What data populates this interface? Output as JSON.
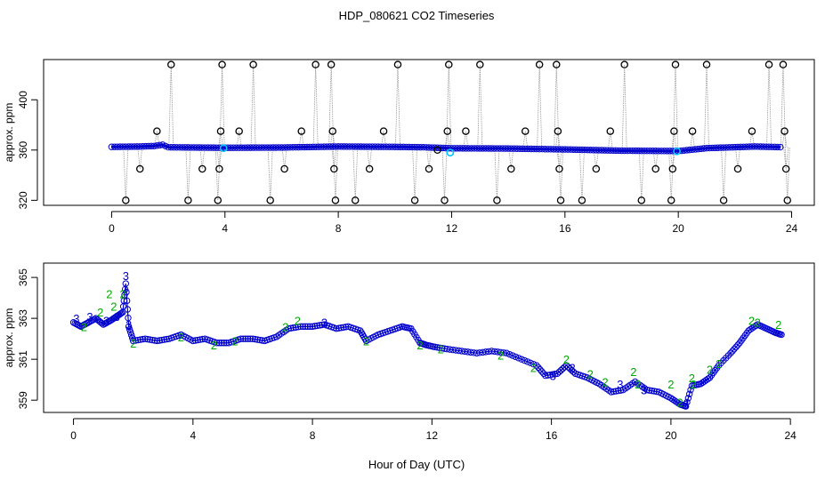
{
  "title": "HDP_080621  CO2 Timeseries",
  "x_axis_label": "Hour of Day (UTC)",
  "chart_data": [
    {
      "type": "scatter",
      "title": "",
      "xlabel": "",
      "ylabel": "approx. ppm",
      "xlim": [
        -2.4,
        24.8
      ],
      "ylim": [
        316,
        432
      ],
      "x_ticks": [
        0,
        4,
        8,
        12,
        16,
        20,
        24
      ],
      "y_ticks": [
        320,
        360,
        400
      ],
      "grid": false,
      "colors": {
        "outlier": "#000000",
        "series": "#0000cc",
        "highlight": "#00c8ff",
        "connector": "#9a9a9a"
      },
      "baseline": [
        [
          0,
          362.5
        ],
        [
          1,
          362.8
        ],
        [
          1.5,
          363.2
        ],
        [
          1.8,
          364.2
        ],
        [
          2.0,
          362.2
        ],
        [
          4,
          361.8
        ],
        [
          6,
          362
        ],
        [
          8,
          362.8
        ],
        [
          10,
          362.5
        ],
        [
          11,
          362.2
        ],
        [
          12,
          361.4
        ],
        [
          14,
          361.2
        ],
        [
          16,
          360.5
        ],
        [
          18,
          359.5
        ],
        [
          20,
          359.2
        ],
        [
          21,
          361.5
        ],
        [
          22.7,
          362.8
        ],
        [
          23.6,
          362.3
        ]
      ],
      "outliers": [
        [
          0.5,
          320
        ],
        [
          1.0,
          345
        ],
        [
          1.6,
          375
        ],
        [
          2.1,
          428
        ],
        [
          2.7,
          320
        ],
        [
          3.2,
          345
        ],
        [
          3.75,
          320
        ],
        [
          3.8,
          345
        ],
        [
          3.85,
          375
        ],
        [
          3.9,
          428
        ],
        [
          4.5,
          375
        ],
        [
          5.0,
          428
        ],
        [
          5.6,
          320
        ],
        [
          6.1,
          345
        ],
        [
          6.7,
          375
        ],
        [
          7.2,
          428
        ],
        [
          7.75,
          428
        ],
        [
          7.8,
          375
        ],
        [
          7.85,
          345
        ],
        [
          7.9,
          320
        ],
        [
          8.6,
          320
        ],
        [
          9.1,
          345
        ],
        [
          9.6,
          375
        ],
        [
          10.1,
          428
        ],
        [
          10.7,
          320
        ],
        [
          11.2,
          345
        ],
        [
          11.5,
          360
        ],
        [
          11.75,
          320
        ],
        [
          11.85,
          375
        ],
        [
          11.9,
          428
        ],
        [
          12.5,
          375
        ],
        [
          13.0,
          428
        ],
        [
          13.6,
          320
        ],
        [
          14.1,
          345
        ],
        [
          14.6,
          375
        ],
        [
          15.1,
          428
        ],
        [
          15.7,
          428
        ],
        [
          15.75,
          375
        ],
        [
          15.8,
          345
        ],
        [
          15.85,
          320
        ],
        [
          16.6,
          320
        ],
        [
          17.1,
          345
        ],
        [
          17.6,
          375
        ],
        [
          18.1,
          428
        ],
        [
          18.7,
          320
        ],
        [
          19.2,
          345
        ],
        [
          19.75,
          320
        ],
        [
          19.8,
          345
        ],
        [
          19.85,
          375
        ],
        [
          19.9,
          428
        ],
        [
          20.5,
          375
        ],
        [
          21.0,
          428
        ],
        [
          21.6,
          320
        ],
        [
          22.1,
          345
        ],
        [
          22.6,
          375
        ],
        [
          23.2,
          428
        ],
        [
          23.7,
          428
        ],
        [
          23.75,
          375
        ],
        [
          23.8,
          345
        ],
        [
          23.85,
          320
        ]
      ],
      "highlights": [
        [
          3.95,
          361.5
        ],
        [
          11.95,
          358
        ],
        [
          19.95,
          359
        ]
      ]
    },
    {
      "type": "scatter",
      "title": "",
      "xlabel": "Hour of Day (UTC)",
      "ylabel": "approx. ppm",
      "xlim": [
        -1.0,
        24.8
      ],
      "ylim": [
        358.4,
        365.7
      ],
      "x_ticks": [
        0,
        4,
        8,
        12,
        16,
        20,
        24
      ],
      "y_ticks": [
        359,
        361,
        363,
        365
      ],
      "grid": false,
      "marker_labels": [
        "2",
        "3"
      ],
      "colors": {
        "line": "#0000cc",
        "point": "#0000cc",
        "label_2": "#00aa00",
        "label_3": "#0000cc"
      },
      "series": [
        {
          "name": "CO2",
          "points": [
            [
              0.0,
              362.8
            ],
            [
              0.25,
              362.6
            ],
            [
              0.5,
              362.8
            ],
            [
              0.75,
              363.0
            ],
            [
              1.0,
              362.7
            ],
            [
              1.25,
              362.9
            ],
            [
              1.45,
              363.1
            ],
            [
              1.65,
              363.3
            ],
            [
              1.75,
              364.7
            ],
            [
              1.85,
              362.6
            ],
            [
              2.0,
              361.9
            ],
            [
              2.4,
              362.0
            ],
            [
              2.8,
              361.9
            ],
            [
              3.2,
              362.0
            ],
            [
              3.6,
              362.2
            ],
            [
              4.0,
              361.9
            ],
            [
              4.4,
              362.0
            ],
            [
              4.8,
              361.8
            ],
            [
              5.2,
              361.8
            ],
            [
              5.6,
              362.0
            ],
            [
              6.0,
              362.0
            ],
            [
              6.4,
              361.9
            ],
            [
              6.8,
              362.1
            ],
            [
              7.2,
              362.5
            ],
            [
              7.6,
              362.6
            ],
            [
              8.0,
              362.6
            ],
            [
              8.4,
              362.7
            ],
            [
              8.8,
              362.5
            ],
            [
              9.2,
              362.6
            ],
            [
              9.6,
              362.4
            ],
            [
              9.8,
              361.9
            ],
            [
              10.2,
              362.2
            ],
            [
              10.6,
              362.4
            ],
            [
              11.0,
              362.6
            ],
            [
              11.3,
              362.5
            ],
            [
              11.6,
              361.8
            ],
            [
              11.8,
              361.7
            ],
            [
              12.1,
              361.6
            ],
            [
              12.5,
              361.5
            ],
            [
              13.0,
              361.4
            ],
            [
              13.5,
              361.3
            ],
            [
              14.0,
              361.4
            ],
            [
              14.5,
              361.3
            ],
            [
              15.0,
              361.0
            ],
            [
              15.5,
              360.7
            ],
            [
              15.8,
              360.2
            ],
            [
              16.2,
              360.3
            ],
            [
              16.5,
              360.7
            ],
            [
              16.8,
              360.3
            ],
            [
              17.2,
              360.1
            ],
            [
              17.6,
              359.8
            ],
            [
              18.0,
              359.4
            ],
            [
              18.4,
              359.5
            ],
            [
              18.8,
              359.9
            ],
            [
              19.2,
              359.5
            ],
            [
              19.6,
              359.4
            ],
            [
              20.0,
              359.1
            ],
            [
              20.3,
              358.8
            ],
            [
              20.5,
              358.7
            ],
            [
              20.7,
              359.7
            ],
            [
              21.0,
              359.8
            ],
            [
              21.3,
              360.1
            ],
            [
              21.6,
              360.7
            ],
            [
              22.0,
              361.3
            ],
            [
              22.3,
              361.8
            ],
            [
              22.6,
              362.4
            ],
            [
              22.9,
              362.7
            ],
            [
              23.2,
              362.5
            ],
            [
              23.5,
              362.3
            ],
            [
              23.7,
              362.2
            ]
          ]
        }
      ],
      "labeled_points": [
        [
          "3",
          0.1,
          363.0
        ],
        [
          "2",
          0.35,
          362.6
        ],
        [
          "3",
          0.55,
          363.1
        ],
        [
          "2",
          0.9,
          363.3
        ],
        [
          "3",
          1.1,
          362.9
        ],
        [
          "2",
          1.2,
          364.2
        ],
        [
          "2",
          1.35,
          363.6
        ],
        [
          "3",
          1.45,
          363.1
        ],
        [
          "2",
          1.65,
          364.2
        ],
        [
          "3",
          1.75,
          365.1
        ],
        [
          "3",
          1.85,
          362.7
        ],
        [
          "2",
          2.0,
          361.8
        ],
        [
          "2",
          3.6,
          362.1
        ],
        [
          "2",
          4.7,
          361.7
        ],
        [
          "2",
          5.4,
          361.9
        ],
        [
          "2",
          7.1,
          362.6
        ],
        [
          "2",
          7.5,
          362.9
        ],
        [
          "3",
          8.4,
          362.8
        ],
        [
          "2",
          9.8,
          361.9
        ],
        [
          "2",
          11.6,
          361.7
        ],
        [
          "2",
          12.3,
          361.5
        ],
        [
          "2",
          14.3,
          361.2
        ],
        [
          "2",
          15.4,
          360.6
        ],
        [
          "3",
          16.05,
          360.2
        ],
        [
          "2",
          16.5,
          361.0
        ],
        [
          "3",
          16.7,
          360.6
        ],
        [
          "2",
          17.3,
          360.3
        ],
        [
          "2",
          17.8,
          359.9
        ],
        [
          "3",
          18.3,
          359.8
        ],
        [
          "2",
          18.75,
          360.4
        ],
        [
          "2",
          18.9,
          359.8
        ],
        [
          "3",
          19.1,
          359.5
        ],
        [
          "2",
          20.0,
          359.8
        ],
        [
          "2",
          20.3,
          358.9
        ],
        [
          "3",
          20.5,
          358.8
        ],
        [
          "2",
          20.7,
          360.1
        ],
        [
          "2",
          20.75,
          359.8
        ],
        [
          "2",
          21.3,
          360.5
        ],
        [
          "2",
          21.6,
          360.8
        ],
        [
          "2",
          22.7,
          362.9
        ],
        [
          "2",
          22.9,
          362.8
        ],
        [
          "2",
          23.6,
          362.7
        ]
      ]
    }
  ]
}
